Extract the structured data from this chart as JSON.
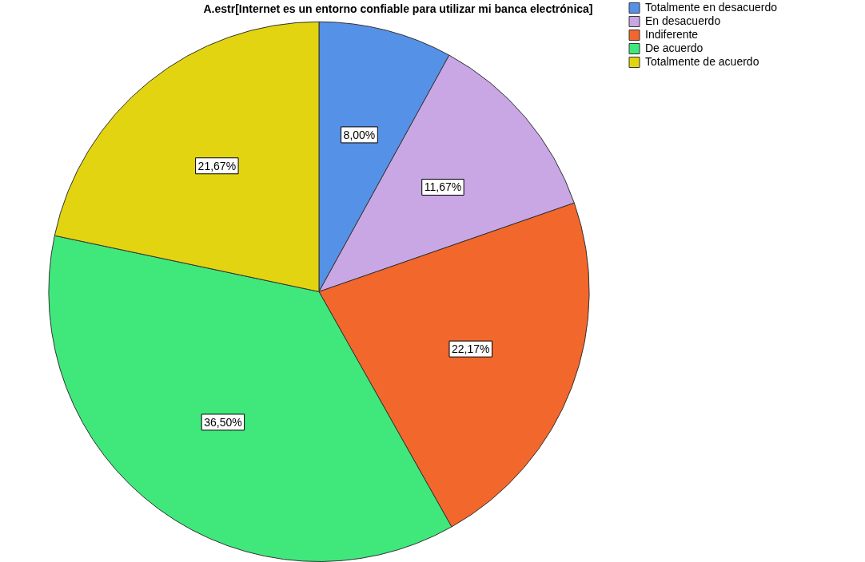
{
  "chart_data": {
    "type": "pie",
    "title": "A.estr[Internet es un entorno confiable para utilizar mi banca electrónica]",
    "categories": [
      "Totalmente en desacuerdo",
      "En desacuerdo",
      "Indiferente",
      "De acuerdo",
      "Totalmente de acuerdo"
    ],
    "values": [
      8,
      11.67,
      22.17,
      36.5,
      21.67
    ],
    "colors": [
      "#5591e6",
      "#c9a6e4",
      "#f2672c",
      "#40e87c",
      "#e2d411"
    ],
    "value_labels": [
      "8,00%",
      "11,67%",
      "22,17%",
      "36,50%",
      "21,67%"
    ],
    "legend": "top right"
  }
}
